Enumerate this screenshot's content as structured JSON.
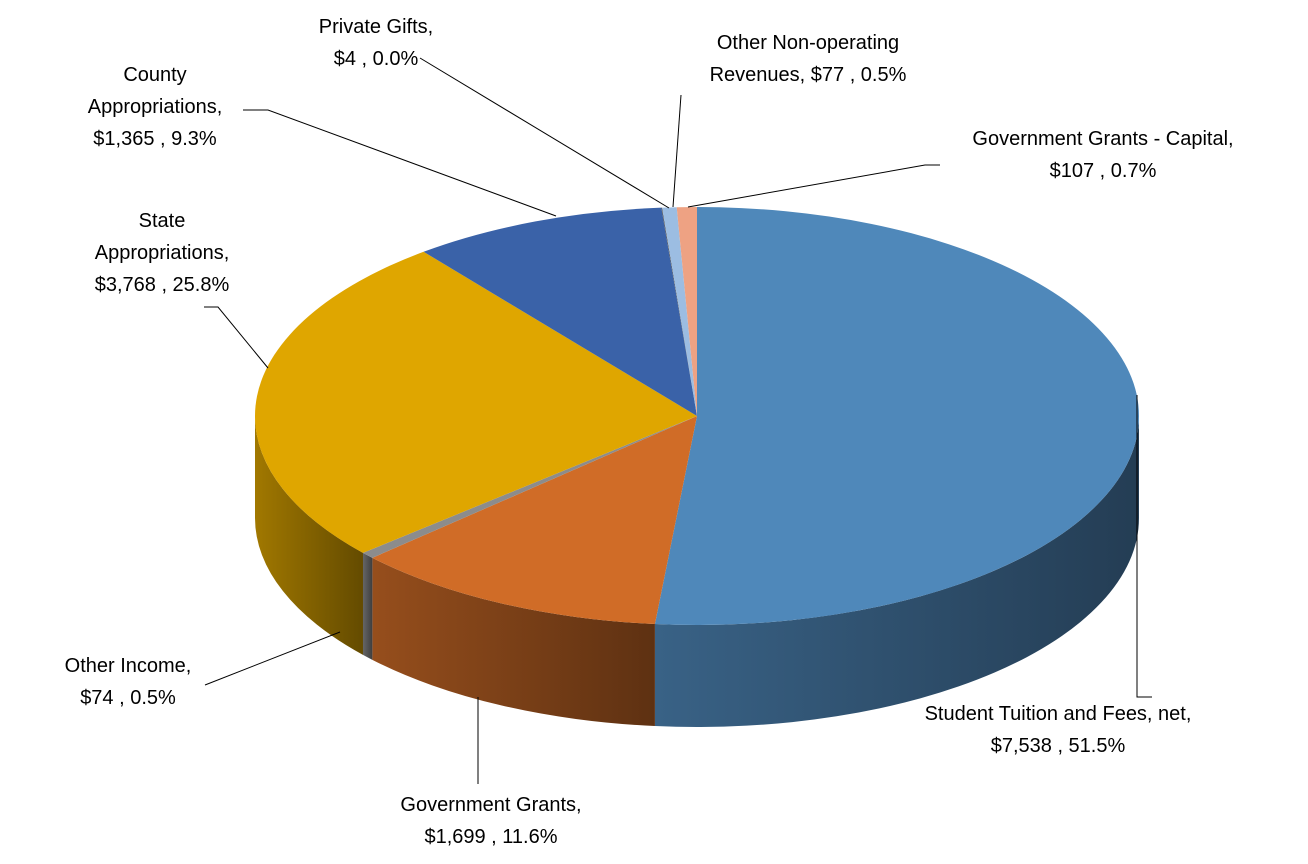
{
  "chart_data": {
    "type": "pie",
    "style": "3d",
    "legend": "none",
    "slices": [
      {
        "label": "Student Tuition and Fees, net",
        "value_text": "$7,538 , 51.5%",
        "value": 7538,
        "percent": 51.5,
        "color": "#4f88ba"
      },
      {
        "label": "Government Grants",
        "value_text": "$1,699 , 11.6%",
        "value": 1699,
        "percent": 11.6,
        "color": "#d06c27"
      },
      {
        "label": "Other Income",
        "value_text": "$74 , 0.5%",
        "value": 74,
        "percent": 0.5,
        "color": "#8c8c8c"
      },
      {
        "label": "State Appropriations",
        "value_text": "$3,768 , 25.8%",
        "value": 3768,
        "percent": 25.8,
        "color": "#dfa600"
      },
      {
        "label": "County Appropriations",
        "value_text": "$1,365 , 9.3%",
        "value": 1365,
        "percent": 9.3,
        "color": "#3a62a8"
      },
      {
        "label": "Private Gifts",
        "value_text": "$4 , 0.0%",
        "value": 4,
        "percent": 0.0,
        "color": "#5b5b5b"
      },
      {
        "label": "Other Non-operating Revenues",
        "value_text": "$77 , 0.5%",
        "value": 77,
        "percent": 0.5,
        "color": "#9cbde2"
      },
      {
        "label": "Government Grants - Capital",
        "value_text": "$107 , 0.7%",
        "value": 107,
        "percent": 0.7,
        "color": "#eea283"
      }
    ]
  }
}
